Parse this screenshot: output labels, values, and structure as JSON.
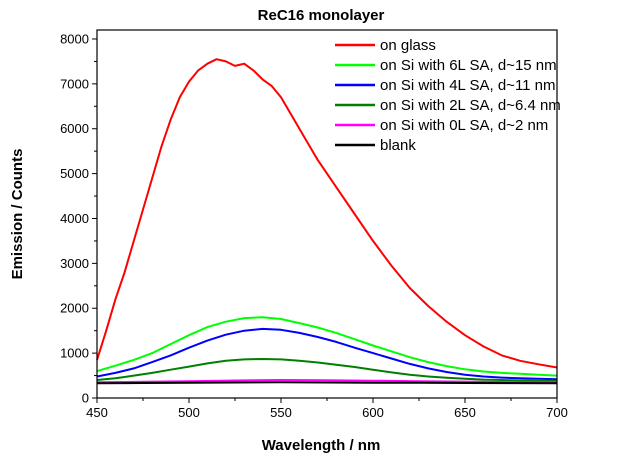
{
  "chart_data": {
    "type": "line",
    "title": "ReC16 monolayer",
    "xlabel": "Wavelength / nm",
    "ylabel": "Emission / Counts",
    "xlim": [
      450,
      700
    ],
    "ylim": [
      0,
      8200
    ],
    "xticks": [
      450,
      500,
      550,
      600,
      650,
      700
    ],
    "yticks": [
      0,
      1000,
      2000,
      3000,
      4000,
      5000,
      6000,
      7000,
      8000
    ],
    "grid": false,
    "legend_position": "top-right",
    "series": [
      {
        "name": "on glass",
        "color": "#ff0000",
        "x": [
          450,
          455,
          460,
          465,
          470,
          475,
          480,
          485,
          490,
          495,
          500,
          505,
          510,
          515,
          520,
          525,
          530,
          535,
          540,
          545,
          550,
          560,
          570,
          580,
          590,
          600,
          610,
          620,
          630,
          640,
          650,
          660,
          670,
          680,
          690,
          700
        ],
        "y": [
          850,
          1500,
          2200,
          2800,
          3500,
          4200,
          4900,
          5600,
          6200,
          6700,
          7050,
          7300,
          7450,
          7550,
          7500,
          7400,
          7450,
          7300,
          7100,
          6950,
          6700,
          6000,
          5300,
          4700,
          4100,
          3500,
          2950,
          2450,
          2050,
          1700,
          1400,
          1150,
          950,
          830,
          750,
          680
        ]
      },
      {
        "name": "on Si with 6L SA, d~15 nm",
        "color": "#00ff00",
        "x": [
          450,
          460,
          470,
          480,
          490,
          500,
          510,
          520,
          530,
          540,
          550,
          560,
          570,
          580,
          590,
          600,
          610,
          620,
          630,
          640,
          650,
          660,
          670,
          680,
          690,
          700
        ],
        "y": [
          600,
          720,
          850,
          1000,
          1200,
          1400,
          1580,
          1700,
          1780,
          1800,
          1760,
          1670,
          1570,
          1450,
          1310,
          1170,
          1040,
          910,
          800,
          710,
          640,
          590,
          560,
          540,
          520,
          500
        ]
      },
      {
        "name": "on Si with 4L SA, d~11 nm",
        "color": "#0000ff",
        "x": [
          450,
          460,
          470,
          480,
          490,
          500,
          510,
          520,
          530,
          540,
          550,
          560,
          570,
          580,
          590,
          600,
          610,
          620,
          630,
          640,
          650,
          660,
          670,
          680,
          690,
          700
        ],
        "y": [
          480,
          560,
          660,
          800,
          950,
          1120,
          1280,
          1410,
          1500,
          1540,
          1520,
          1450,
          1360,
          1250,
          1120,
          1000,
          880,
          760,
          660,
          580,
          520,
          480,
          455,
          440,
          430,
          420
        ]
      },
      {
        "name": "on Si with 2L SA, d~6.4 nm",
        "color": "#008000",
        "x": [
          450,
          460,
          470,
          480,
          490,
          500,
          510,
          520,
          530,
          540,
          550,
          560,
          570,
          580,
          590,
          600,
          610,
          620,
          630,
          640,
          650,
          660,
          670,
          680,
          690,
          700
        ],
        "y": [
          400,
          440,
          500,
          560,
          630,
          700,
          770,
          830,
          860,
          870,
          860,
          830,
          790,
          740,
          690,
          630,
          570,
          520,
          480,
          450,
          430,
          410,
          400,
          390,
          385,
          380
        ]
      },
      {
        "name": "on Si with 0L SA, d~2 nm",
        "color": "#ff00ff",
        "x": [
          450,
          475,
          500,
          525,
          550,
          575,
          600,
          625,
          650,
          675,
          700
        ],
        "y": [
          350,
          360,
          375,
          390,
          400,
          395,
          385,
          375,
          365,
          355,
          350
        ]
      },
      {
        "name": "blank",
        "color": "#000000",
        "x": [
          450,
          475,
          500,
          525,
          550,
          575,
          600,
          625,
          650,
          675,
          700
        ],
        "y": [
          330,
          335,
          340,
          345,
          350,
          345,
          340,
          338,
          335,
          332,
          330
        ]
      }
    ]
  }
}
